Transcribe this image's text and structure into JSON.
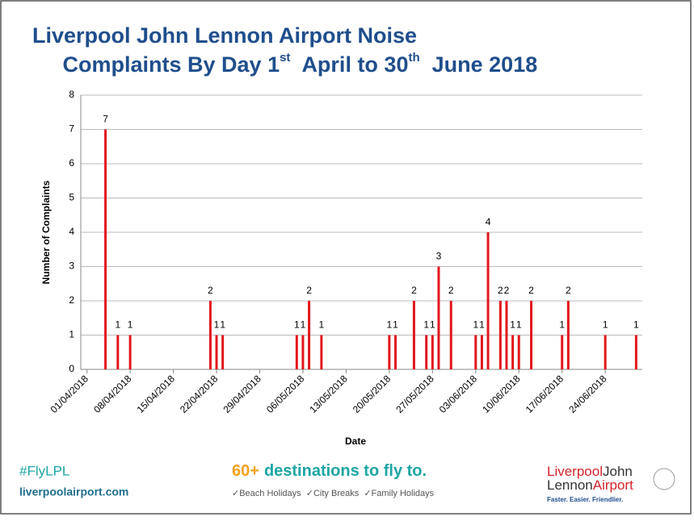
{
  "chart_data": {
    "type": "bar",
    "title": {
      "line1": "Liverpool John Lennon Airport Noise",
      "line2": [
        "Complaints By Day 1",
        "st",
        "  April to 30",
        "th",
        "  June 2018"
      ]
    },
    "x_label": "Date",
    "y_label": "Number of Complaints",
    "x": [
      "04/04/2018",
      "06/04/2018",
      "08/04/2018",
      "21/04/2018",
      "22/04/2018",
      "23/04/2018",
      "05/05/2018",
      "06/05/2018",
      "07/05/2018",
      "09/05/2018",
      "20/05/2018",
      "21/05/2018",
      "24/05/2018",
      "26/05/2018",
      "27/05/2018",
      "28/05/2018",
      "30/05/2018",
      "03/06/2018",
      "04/06/2018",
      "05/06/2018",
      "07/06/2018",
      "08/06/2018",
      "09/06/2018",
      "10/06/2018",
      "12/06/2018",
      "17/06/2018",
      "18/06/2018",
      "24/06/2018",
      "29/06/2018"
    ],
    "values": [
      7,
      1,
      1,
      2,
      1,
      1,
      1,
      1,
      2,
      1,
      1,
      1,
      2,
      1,
      1,
      3,
      2,
      1,
      1,
      4,
      2,
      2,
      1,
      1,
      2,
      1,
      2,
      1,
      1
    ],
    "color": "#e3161d",
    "xlim": [
      "31/03/2018",
      "30/06/2018"
    ],
    "xticks": [
      "01/04/2018",
      "08/04/2018",
      "15/04/2018",
      "22/04/2018",
      "29/04/2018",
      "06/05/2018",
      "13/05/2018",
      "20/05/2018",
      "27/05/2018",
      "03/06/2018",
      "10/06/2018",
      "17/06/2018",
      "24/06/2018"
    ],
    "ylim": [
      0,
      8
    ],
    "yticks": [
      0,
      1,
      2,
      3,
      4,
      5,
      6,
      7,
      8
    ],
    "grid": true
  },
  "footer": {
    "hashtag": "#FlyLPL",
    "website": "liverpoolairport.com",
    "promo_number": "60+",
    "promo_text": "destinations to fly to.",
    "holidays": "✓Beach Holidays  ✓City Breaks  ✓Family Holidays",
    "logo": [
      "Liverpool",
      "John",
      "Lennon",
      "Airport"
    ],
    "slogan": "Faster. Easier. Friendlier."
  }
}
